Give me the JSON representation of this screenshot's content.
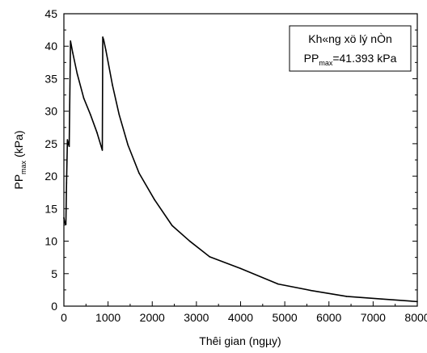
{
  "chart_data": {
    "type": "line",
    "xlabel": "Thêi gian (ngµy)",
    "ylabel_main": "PP",
    "ylabel_sub": "max",
    "ylabel_unit": " (kPa)",
    "xlim": [
      0,
      8000
    ],
    "ylim": [
      0,
      45
    ],
    "xticks": [
      0,
      1000,
      2000,
      3000,
      4000,
      5000,
      6000,
      7000,
      8000
    ],
    "yticks": [
      0,
      5,
      10,
      15,
      20,
      25,
      30,
      35,
      40,
      45
    ],
    "xtick_labels": [
      "0",
      "1000",
      "2000",
      "3000",
      "4000",
      "5000",
      "6000",
      "7000",
      "8000"
    ],
    "ytick_labels": [
      "0",
      "5",
      "10",
      "15",
      "20",
      "25",
      "30",
      "35",
      "40",
      "45"
    ],
    "grid": false,
    "legend": {
      "placement": "top-right",
      "line1": "Kh«ng xö lý nÒn",
      "line2_main": "PP",
      "line2_sub": "max",
      "line2_rest": "=41.393 kPa"
    },
    "series": [
      {
        "x": [
          0,
          20,
          45,
          60,
          80,
          100,
          120,
          150,
          200,
          300,
          450,
          600,
          750,
          870,
          880,
          900,
          950,
          1000,
          1100,
          1250,
          1450,
          1700,
          2050,
          2450,
          2850,
          3300,
          4000,
          4850,
          5600,
          6400,
          7200,
          8000
        ],
        "y": [
          13.6,
          12.8,
          12.6,
          19.0,
          25.6,
          25.0,
          24.6,
          40.8,
          39.0,
          35.8,
          32.0,
          29.5,
          26.7,
          24.0,
          41.4,
          41.0,
          39.4,
          37.6,
          34.0,
          29.5,
          24.8,
          20.5,
          16.4,
          12.4,
          10.0,
          7.6,
          5.8,
          3.4,
          2.4,
          1.5,
          1.1,
          0.7
        ]
      }
    ],
    "color": "#000000"
  }
}
